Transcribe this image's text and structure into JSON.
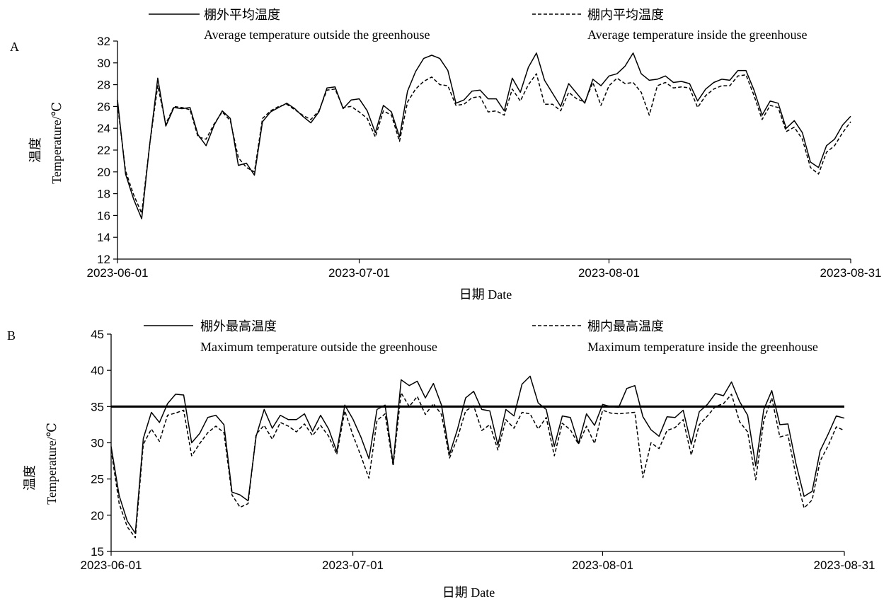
{
  "chart_data": [
    {
      "type": "line",
      "panel_label": "A",
      "xlabel": "日期 Date",
      "ylabel_cn": "温度",
      "ylabel_en": "Temperature/℃",
      "ylim": [
        12,
        32
      ],
      "yticks": [
        12,
        14,
        16,
        18,
        20,
        22,
        24,
        26,
        28,
        30,
        32
      ],
      "xlim": [
        "2023-06-01",
        "2023-08-31"
      ],
      "xticks": [
        "2023-06-01",
        "2023-07-01",
        "2023-08-01",
        "2023-08-31"
      ],
      "legend_position": "top",
      "grid": false,
      "x_start": "2023-06-01",
      "series": [
        {
          "name_cn": "棚外平均温度",
          "name_en": "Average temperature outside the greenhouse",
          "style": "solid",
          "values": [
            26.6,
            19.8,
            17.5,
            15.7,
            22.5,
            28.6,
            24.2,
            25.9,
            25.8,
            25.9,
            23.4,
            22.4,
            24.3,
            25.6,
            24.9,
            20.6,
            20.8,
            19.7,
            24.6,
            25.5,
            25.9,
            26.3,
            25.8,
            25.1,
            24.5,
            25.5,
            27.7,
            27.8,
            25.8,
            26.6,
            26.7,
            25.6,
            23.6,
            26.1,
            25.5,
            23.2,
            27.4,
            29.2,
            30.4,
            30.7,
            30.4,
            29.3,
            26.3,
            26.6,
            27.4,
            27.5,
            26.7,
            26.7,
            25.6,
            28.6,
            27.3,
            29.6,
            30.9,
            28.4,
            27.2,
            26.0,
            28.1,
            27.2,
            26.3,
            28.5,
            27.9,
            28.8,
            29.0,
            29.7,
            30.9,
            29.0,
            28.4,
            28.5,
            28.8,
            28.2,
            28.3,
            28.1,
            26.5,
            27.6,
            28.2,
            28.5,
            28.4,
            29.3,
            29.3,
            27.5,
            25.2,
            26.5,
            26.3,
            24.0,
            24.7,
            23.6,
            20.9,
            20.4,
            22.4,
            23.0,
            24.3,
            25.1
          ]
        },
        {
          "name_cn": "棚内平均温度",
          "name_en": "Average temperature inside the greenhouse",
          "style": "dashed",
          "values": [
            26.2,
            20.1,
            17.9,
            16.2,
            22.5,
            27.9,
            24.4,
            26.0,
            25.9,
            25.7,
            23.2,
            23.0,
            24.4,
            25.5,
            24.7,
            21.3,
            20.4,
            20.0,
            24.9,
            25.6,
            26.0,
            26.2,
            25.7,
            25.2,
            24.8,
            25.6,
            27.5,
            27.6,
            25.9,
            26.0,
            25.5,
            24.9,
            23.2,
            25.6,
            25.2,
            22.8,
            26.4,
            27.6,
            28.3,
            28.7,
            28.0,
            27.9,
            26.1,
            26.2,
            26.8,
            26.9,
            25.5,
            25.6,
            25.2,
            27.6,
            26.5,
            28.0,
            29.0,
            26.2,
            26.2,
            25.6,
            27.3,
            26.7,
            26.4,
            28.2,
            26.1,
            27.9,
            28.6,
            28.1,
            28.2,
            27.3,
            25.2,
            27.9,
            28.2,
            27.7,
            27.8,
            27.7,
            25.9,
            27.0,
            27.6,
            27.9,
            27.9,
            28.8,
            28.9,
            27.0,
            24.8,
            26.1,
            25.9,
            23.7,
            24.1,
            23.0,
            20.4,
            19.8,
            21.8,
            22.4,
            23.6,
            24.6
          ]
        }
      ]
    },
    {
      "type": "line",
      "panel_label": "B",
      "xlabel": "日期 Date",
      "ylabel_cn": "温度",
      "ylabel_en": "Temperature/℃",
      "ylim": [
        15,
        45
      ],
      "yticks": [
        15,
        20,
        25,
        30,
        35,
        40,
        45
      ],
      "xlim": [
        "2023-06-01",
        "2023-08-31"
      ],
      "xticks": [
        "2023-06-01",
        "2023-07-01",
        "2023-08-01",
        "2023-08-31"
      ],
      "legend_position": "top",
      "grid": false,
      "reference_line": 35,
      "x_start": "2023-06-01",
      "series": [
        {
          "name_cn": "棚外最高温度",
          "name_en": "Maximum temperature outside the greenhouse",
          "style": "solid",
          "values": [
            29.5,
            22.7,
            19.2,
            17.5,
            30.6,
            34.2,
            32.8,
            35.4,
            36.7,
            36.6,
            30.0,
            31.3,
            33.5,
            33.8,
            32.5,
            23.2,
            22.8,
            22.0,
            30.9,
            34.6,
            32.0,
            33.8,
            33.2,
            33.2,
            34.0,
            31.6,
            33.8,
            31.9,
            28.8,
            35.2,
            33.3,
            30.8,
            27.8,
            34.6,
            35.2,
            27.1,
            38.7,
            37.9,
            38.5,
            36.2,
            38.2,
            35.2,
            28.4,
            31.9,
            36.2,
            37.1,
            34.6,
            34.4,
            29.7,
            34.6,
            33.7,
            38.1,
            39.2,
            35.5,
            34.6,
            29.5,
            33.7,
            33.5,
            29.9,
            34.0,
            32.4,
            35.3,
            35.0,
            34.9,
            37.5,
            37.9,
            33.6,
            31.8,
            30.9,
            33.6,
            33.5,
            34.5,
            29.8,
            34.3,
            35.3,
            36.8,
            36.5,
            38.4,
            35.7,
            33.8,
            26.8,
            34.6,
            37.2,
            32.5,
            32.6,
            27.1,
            22.6,
            23.3,
            28.9,
            31.2,
            33.7,
            33.4
          ]
        },
        {
          "name_cn": "棚内最高温度",
          "name_en": "Maximum temperature inside the greenhouse",
          "style": "dashed",
          "values": [
            29.0,
            21.6,
            18.4,
            16.9,
            29.8,
            31.9,
            30.2,
            33.8,
            34.1,
            34.5,
            28.2,
            29.9,
            31.4,
            32.3,
            31.4,
            22.8,
            21.1,
            21.6,
            31.2,
            32.4,
            30.5,
            32.8,
            32.3,
            31.5,
            32.6,
            31.0,
            32.4,
            30.9,
            28.4,
            34.4,
            31.1,
            28.2,
            25.1,
            33.1,
            34.0,
            26.8,
            36.9,
            35.0,
            36.4,
            33.9,
            35.4,
            33.9,
            27.9,
            30.7,
            34.4,
            35.1,
            31.7,
            32.5,
            29.0,
            33.2,
            32.0,
            34.2,
            34.0,
            31.9,
            33.5,
            28.2,
            32.7,
            31.8,
            29.8,
            32.3,
            29.9,
            34.5,
            34.1,
            34.0,
            34.1,
            34.2,
            25.2,
            30.0,
            29.2,
            31.7,
            32.1,
            33.2,
            28.3,
            32.5,
            33.7,
            35.0,
            35.4,
            36.7,
            32.9,
            31.5,
            24.9,
            33.1,
            36.2,
            30.8,
            31.1,
            25.4,
            21.0,
            22.1,
            27.5,
            29.6,
            32.2,
            31.7
          ]
        }
      ]
    }
  ]
}
